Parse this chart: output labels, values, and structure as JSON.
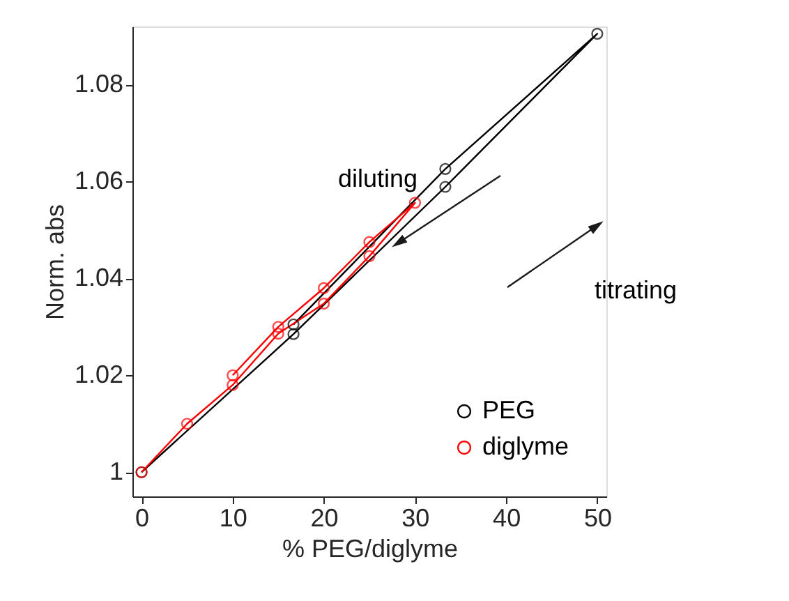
{
  "chart_data": {
    "type": "line",
    "xlabel": "% PEG/diglyme",
    "ylabel": "Norm. abs",
    "xlim": [
      -1,
      51
    ],
    "ylim": [
      0.995,
      1.092
    ],
    "xticks": [
      0,
      10,
      20,
      30,
      40,
      50
    ],
    "yticks": [
      1,
      1.02,
      1.04,
      1.06,
      1.08
    ],
    "grid": false,
    "legend": "bottom right",
    "marker": "circle",
    "line_style": "solid",
    "annotations": [
      "diluting",
      "titrating"
    ],
    "series": [
      {
        "name": "PEG",
        "color": "#000000",
        "x": [
          0,
          16.67,
          33.33,
          50,
          33.33,
          16.67
        ],
        "values": [
          1.0,
          1.0285,
          1.0589,
          1.0905,
          1.0626,
          1.0305
        ]
      },
      {
        "name": "diglyme",
        "color": "#ff0000",
        "x": [
          0,
          5,
          10,
          15,
          20,
          25,
          30,
          25,
          20,
          15,
          10
        ],
        "values": [
          1.0,
          1.01,
          1.018,
          1.0286,
          1.0348,
          1.0446,
          1.0556,
          1.0475,
          1.038,
          1.03,
          1.02
        ]
      }
    ]
  }
}
